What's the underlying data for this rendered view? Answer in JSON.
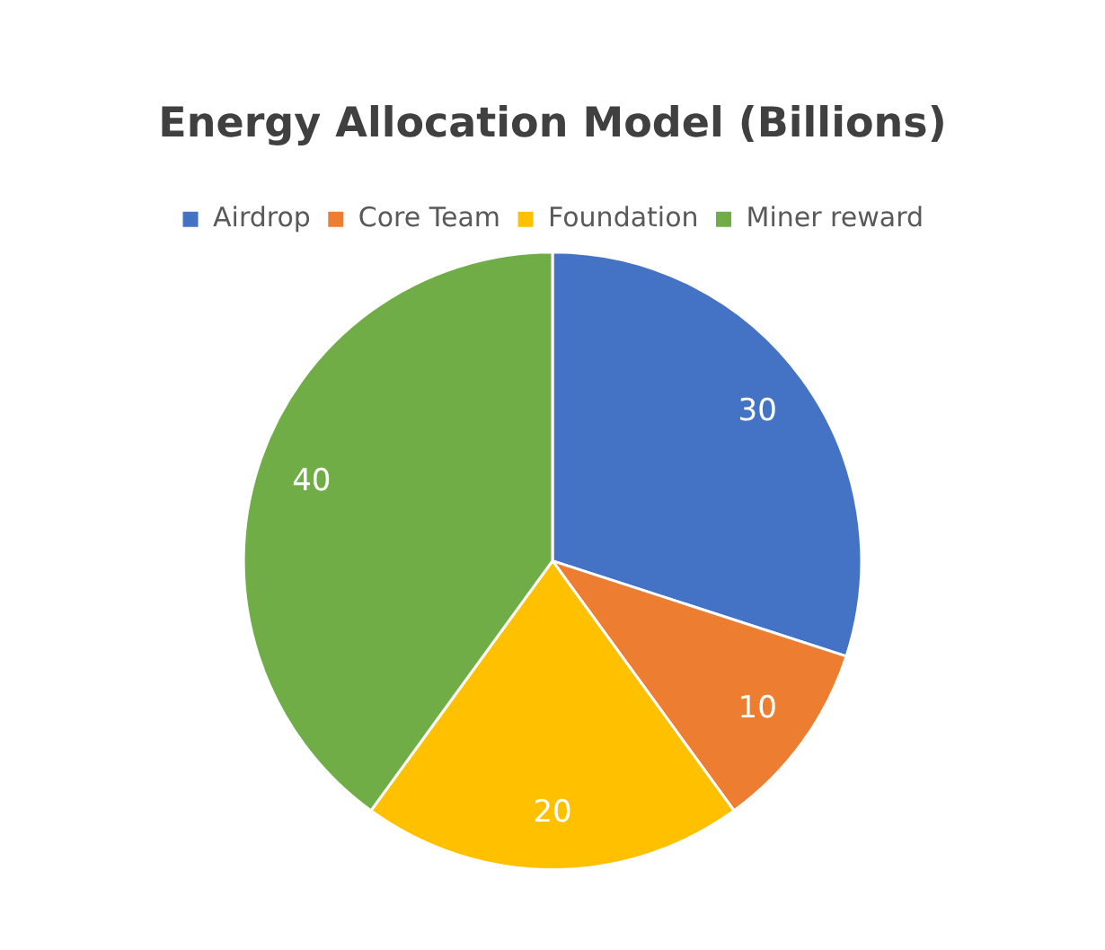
{
  "chart_data": {
    "type": "pie",
    "title": "Energy Allocation Model (Billions)",
    "categories": [
      "Airdrop",
      "Core Team",
      "Foundation",
      "Miner reward"
    ],
    "values": [
      30,
      10,
      20,
      40
    ],
    "colors": [
      "#4472c4",
      "#ed7d31",
      "#ffc000",
      "#70ad47"
    ],
    "data_labels": true,
    "legend": "top"
  }
}
